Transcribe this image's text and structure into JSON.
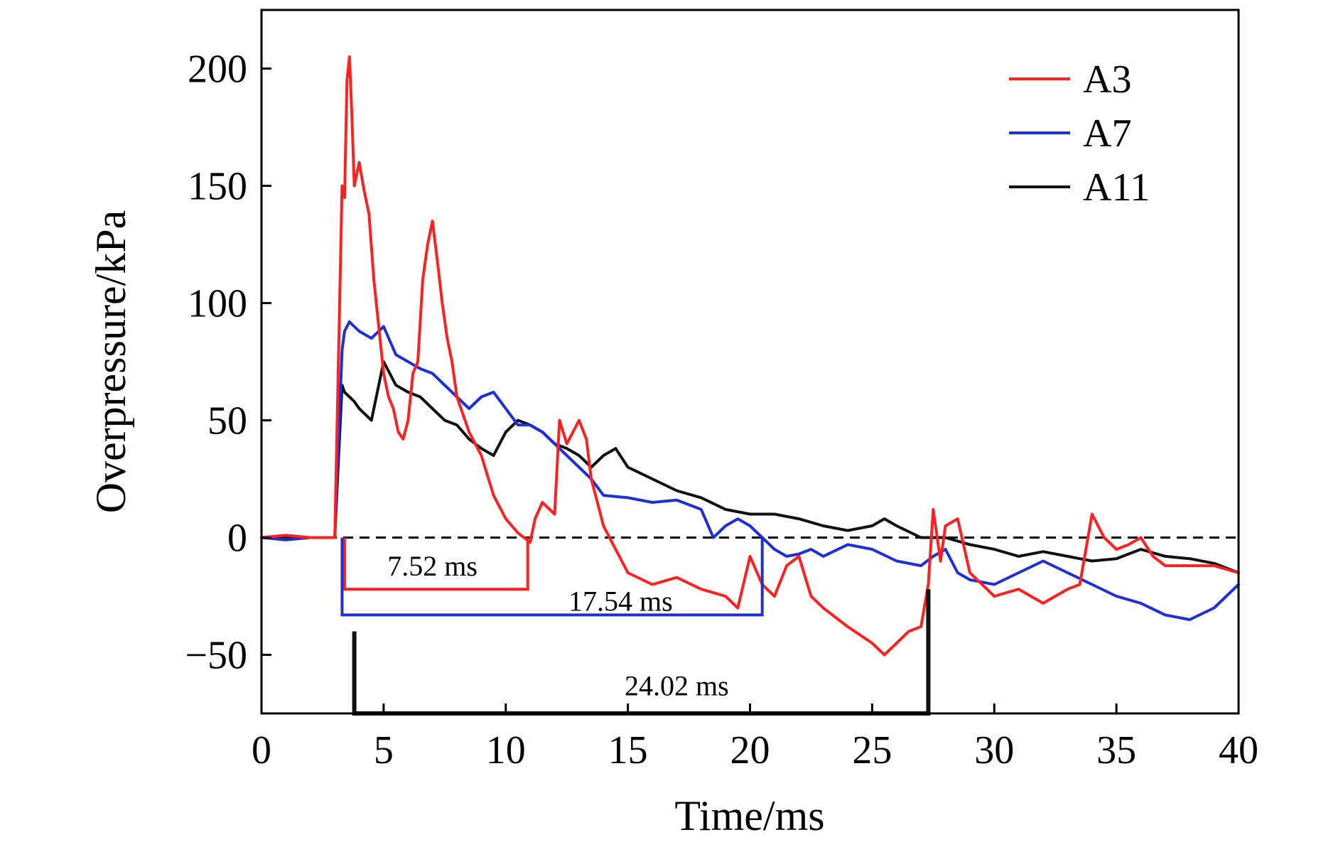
{
  "chart_data": {
    "type": "line",
    "xlabel": "Time/ms",
    "ylabel": "Overpressure/kPa",
    "xlim": [
      0,
      40
    ],
    "ylim": [
      -75,
      225
    ],
    "x_ticks": [
      0,
      5,
      10,
      15,
      20,
      25,
      30,
      35,
      40
    ],
    "y_ticks": [
      -50,
      0,
      50,
      100,
      150,
      200
    ],
    "x_tick_labels": [
      "0",
      "5",
      "10",
      "15",
      "20",
      "25",
      "30",
      "35",
      "40"
    ],
    "y_tick_labels": [
      "−50",
      "0",
      "50",
      "100",
      "150",
      "200"
    ],
    "grid": false,
    "legend_position": "top-right",
    "zero_reference": {
      "y": 0,
      "style": "dashed",
      "color": "#000000"
    },
    "series": [
      {
        "name": "A3",
        "color": "#ff2020",
        "x": [
          0,
          1,
          2,
          3,
          3.3,
          3.4,
          3.5,
          3.6,
          3.7,
          3.8,
          4.0,
          4.2,
          4.4,
          4.6,
          4.8,
          5.0,
          5.2,
          5.4,
          5.6,
          5.8,
          6.0,
          6.2,
          6.4,
          6.6,
          6.8,
          7.0,
          7.2,
          7.4,
          7.6,
          7.8,
          8.0,
          8.5,
          9.0,
          9.5,
          10.0,
          10.5,
          11.0,
          11.2,
          11.5,
          12.0,
          12.2,
          12.5,
          13.0,
          13.3,
          13.5,
          14.0,
          15.0,
          16.0,
          17.0,
          18.0,
          19.0,
          19.5,
          20.0,
          20.5,
          21.0,
          21.5,
          22.0,
          22.5,
          23.0,
          24.0,
          25.0,
          25.5,
          26.0,
          26.5,
          27.0,
          27.3,
          27.5,
          27.8,
          28.0,
          28.5,
          29.0,
          29.5,
          30.0,
          31.0,
          32.0,
          33.0,
          33.5,
          34.0,
          34.5,
          35.0,
          35.5,
          36.0,
          36.5,
          37.0,
          38.0,
          39.0,
          40.0
        ],
        "y": [
          0,
          1,
          0,
          0,
          150,
          145,
          195,
          205,
          180,
          150,
          160,
          148,
          138,
          110,
          90,
          70,
          60,
          55,
          45,
          42,
          50,
          70,
          75,
          110,
          125,
          135,
          118,
          100,
          85,
          75,
          60,
          45,
          35,
          18,
          8,
          2,
          -2,
          8,
          15,
          10,
          50,
          40,
          50,
          42,
          25,
          5,
          -15,
          -20,
          -17,
          -22,
          -25,
          -30,
          -8,
          -20,
          -25,
          -12,
          -8,
          -25,
          -30,
          -38,
          -45,
          -50,
          -45,
          -40,
          -38,
          -20,
          12,
          -10,
          5,
          8,
          -15,
          -20,
          -25,
          -22,
          -28,
          -22,
          -20,
          10,
          0,
          -5,
          -3,
          0,
          -8,
          -12,
          -12,
          -12,
          -15
        ]
      },
      {
        "name": "A7",
        "color": "#1e2fd8",
        "x": [
          0,
          1,
          2,
          3,
          3.3,
          3.4,
          3.6,
          3.8,
          4.0,
          4.5,
          5.0,
          5.5,
          6.0,
          6.5,
          7.0,
          7.5,
          8.0,
          8.5,
          9.0,
          9.5,
          10.0,
          10.5,
          11.0,
          11.5,
          12.0,
          12.5,
          13.0,
          13.5,
          14.0,
          15.0,
          16.0,
          17.0,
          18.0,
          18.5,
          19.0,
          19.5,
          20.0,
          20.5,
          21.0,
          21.5,
          22.0,
          22.5,
          23.0,
          24.0,
          25.0,
          26.0,
          27.0,
          27.5,
          28.0,
          28.5,
          29.0,
          30.0,
          31.0,
          32.0,
          33.0,
          34.0,
          35.0,
          36.0,
          37.0,
          38.0,
          39.0,
          40.0
        ],
        "y": [
          0,
          -1,
          0,
          0,
          80,
          88,
          92,
          90,
          88,
          85,
          90,
          78,
          75,
          72,
          70,
          65,
          60,
          55,
          60,
          62,
          55,
          48,
          48,
          45,
          40,
          35,
          30,
          25,
          18,
          17,
          15,
          16,
          12,
          0,
          5,
          8,
          5,
          0,
          -5,
          -8,
          -7,
          -5,
          -8,
          -3,
          -5,
          -10,
          -12,
          -8,
          -5,
          -15,
          -18,
          -20,
          -15,
          -10,
          -15,
          -20,
          -25,
          -28,
          -33,
          -35,
          -30,
          -20
        ]
      },
      {
        "name": "A11",
        "color": "#111111",
        "x": [
          0,
          1,
          2,
          3,
          3.3,
          3.4,
          3.6,
          3.8,
          4.0,
          4.5,
          5.0,
          5.5,
          6.0,
          6.5,
          7.0,
          7.5,
          8.0,
          8.5,
          9.0,
          9.5,
          10.0,
          10.5,
          11.0,
          11.5,
          12.0,
          12.5,
          13.0,
          13.5,
          14.0,
          14.5,
          15.0,
          16.0,
          17.0,
          18.0,
          19.0,
          20.0,
          21.0,
          22.0,
          23.0,
          24.0,
          25.0,
          25.5,
          26.0,
          27.0,
          28.0,
          29.0,
          30.0,
          31.0,
          32.0,
          33.0,
          34.0,
          35.0,
          36.0,
          37.0,
          38.0,
          39.0,
          40.0
        ],
        "y": [
          0,
          0,
          0,
          0,
          65,
          62,
          60,
          58,
          55,
          50,
          75,
          65,
          62,
          60,
          55,
          50,
          48,
          42,
          38,
          35,
          45,
          50,
          48,
          45,
          40,
          38,
          35,
          30,
          35,
          38,
          30,
          25,
          20,
          17,
          12,
          10,
          10,
          8,
          5,
          3,
          5,
          8,
          5,
          0,
          0,
          -3,
          -5,
          -8,
          -6,
          -8,
          -10,
          -9,
          -5,
          -8,
          -9,
          -11,
          -15
        ]
      }
    ],
    "annotations": [
      {
        "text": "7.52 ms",
        "color": "#ff2020",
        "from_x": 3.4,
        "to_x": 10.9,
        "level_y": -22,
        "label_x": 7.0,
        "label_y": -12
      },
      {
        "text": "17.54 ms",
        "color": "#1e2fd8",
        "from_x": 3.3,
        "to_x": 20.5,
        "level_y": -33,
        "label_x": 14.7,
        "label_y": -27
      },
      {
        "text": "24.02 ms",
        "color": "#111111",
        "from_x": 3.8,
        "to_x": 27.3,
        "level_y": -75,
        "label_x": 17.0,
        "label_y": -63
      }
    ]
  }
}
